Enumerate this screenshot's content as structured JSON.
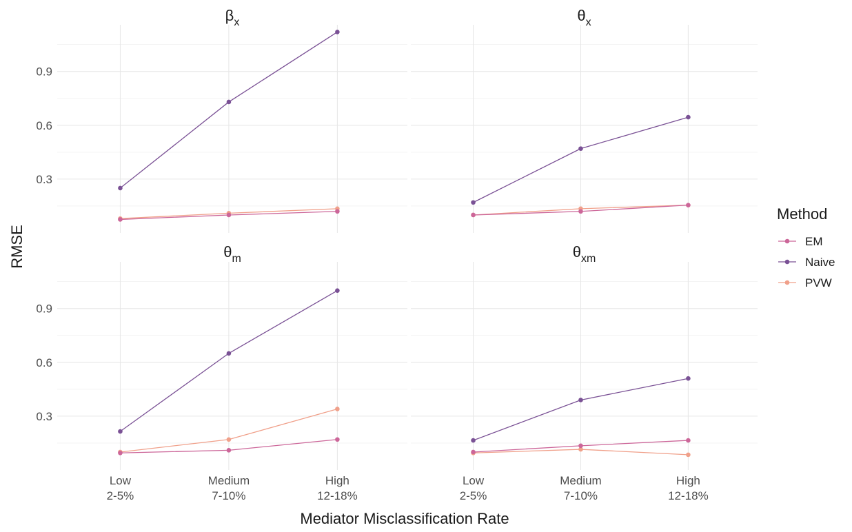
{
  "chart_data": {
    "type": "line",
    "categories": [
      [
        "Low",
        "2-5%"
      ],
      [
        "Medium",
        "7-10%"
      ],
      [
        "High",
        "12-18%"
      ]
    ],
    "xlabel": "Mediator Misclassification Rate",
    "ylabel": "RMSE",
    "ylim": [
      0.0,
      1.16
    ],
    "yticks": [
      "0.3",
      "0.6",
      "0.9"
    ],
    "grid": true,
    "legend": {
      "title": "Method",
      "position": "right",
      "entries": [
        "EM",
        "Naive",
        "PVW"
      ]
    },
    "colors": {
      "EM": "#cc6699",
      "Naive": "#7a5195",
      "PVW": "#f0a08a"
    },
    "panels": [
      {
        "title_main": "β",
        "title_sub": "x",
        "series": [
          {
            "name": "EM",
            "values": [
              0.075,
              0.1,
              0.12
            ]
          },
          {
            "name": "Naive",
            "values": [
              0.25,
              0.73,
              1.12
            ]
          },
          {
            "name": "PVW",
            "values": [
              0.08,
              0.11,
              0.135
            ]
          }
        ]
      },
      {
        "title_main": "θ",
        "title_sub": "x",
        "series": [
          {
            "name": "EM",
            "values": [
              0.1,
              0.12,
              0.155
            ]
          },
          {
            "name": "Naive",
            "values": [
              0.17,
              0.47,
              0.645
            ]
          },
          {
            "name": "PVW",
            "values": [
              0.1,
              0.135,
              0.155
            ]
          }
        ]
      },
      {
        "title_main": "θ",
        "title_sub": "m",
        "series": [
          {
            "name": "EM",
            "values": [
              0.095,
              0.11,
              0.17
            ]
          },
          {
            "name": "Naive",
            "values": [
              0.215,
              0.65,
              1.0
            ]
          },
          {
            "name": "PVW",
            "values": [
              0.1,
              0.17,
              0.34
            ]
          }
        ]
      },
      {
        "title_main": "θ",
        "title_sub": "xm",
        "series": [
          {
            "name": "EM",
            "values": [
              0.1,
              0.135,
              0.165
            ]
          },
          {
            "name": "Naive",
            "values": [
              0.165,
              0.39,
              0.51
            ]
          },
          {
            "name": "PVW",
            "values": [
              0.095,
              0.115,
              0.085
            ]
          }
        ]
      }
    ]
  }
}
